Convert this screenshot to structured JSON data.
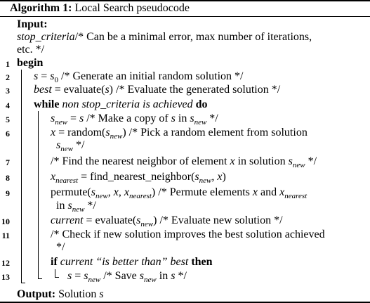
{
  "header": {
    "label": "Algorithm 1:",
    "title": "Local Search pseudocode"
  },
  "input": {
    "label": "Input:",
    "var": "stop_criteria",
    "comment_1": "/* Can be a minimal error, max number of iterations,",
    "comment_2": "etc. */"
  },
  "lines": [
    {
      "num": "1",
      "kw": "begin"
    },
    {
      "num": "2",
      "lhs": "s",
      "eq": " = ",
      "rhs_var": "s",
      "rhs_sub": "0",
      "comment": " /* Generate an initial random solution */"
    },
    {
      "num": "3",
      "lhs": "best",
      "eq": " = evaluate(",
      "arg": "s",
      "close": ")",
      "comment": " /* Evaluate the generated solution */"
    },
    {
      "num": "4",
      "kw": "while",
      "cond": "non stop_criteria is achieved",
      "kw2": "do"
    },
    {
      "num": "5",
      "lhs": "s",
      "lhs_sub": "new",
      "eq": " = ",
      "rhs": "s",
      "comment": " /* Make a copy of ",
      "c_var": "s",
      "c_mid": " in ",
      "c_var2": "s",
      "c_sub2": "new",
      "c_end": " */"
    },
    {
      "num": "6",
      "lhs": "x",
      "eq": " = random(",
      "arg": "s",
      "arg_sub": "new",
      "close": ")",
      "comment": " /* Pick a random element from solution",
      "cont_var": "s",
      "cont_sub": "new",
      "cont_end": " */"
    },
    {
      "num": "7",
      "comment": "/* Find the nearest neighbor of element ",
      "c_var": "x",
      "c_mid": " in solution ",
      "c_var2": "s",
      "c_sub2": "new",
      "c_end": " */"
    },
    {
      "num": "8",
      "lhs": "x",
      "lhs_sub": "nearest",
      "eq": " = find_nearest_neighbor(",
      "arg": "s",
      "arg_sub": "new",
      "sep": ", ",
      "arg2": "x",
      "close": ")"
    },
    {
      "num": "9",
      "fn": "permute(",
      "arg": "s",
      "arg_sub": "new",
      "sep": ", ",
      "arg2": "x",
      "sep2": ", ",
      "arg3": "x",
      "arg3_sub": "nearest",
      "close": ")",
      "comment": " /* Permute elements ",
      "c_var": "x",
      "c_mid": " and ",
      "c_var2": "x",
      "c_sub2": "nearest",
      "cont_pre": "in ",
      "cont_var": "s",
      "cont_sub": "new",
      "cont_end": " */"
    },
    {
      "num": "10",
      "lhs": "current",
      "eq": " = evaluate(",
      "arg": "s",
      "arg_sub": "new",
      "close": ")",
      "comment": " /* Evaluate new solution */"
    },
    {
      "num": "11",
      "comment": "/* Check if new solution improves the best solution achieved",
      "cont_end": "*/"
    },
    {
      "num": "12",
      "kw": "if",
      "cond_var": "current",
      "cond_str": "“is better than”",
      "cond_var2": "best",
      "kw2": "then"
    },
    {
      "num": "13",
      "lhs": "s",
      "eq": " = ",
      "rhs": "s",
      "rhs_sub": "new",
      "comment": " /* Save ",
      "c_var": "s",
      "c_sub": "new",
      "c_mid": " in ",
      "c_var2": "s",
      "c_end": " */"
    }
  ],
  "output": {
    "label": "Output:",
    "text": "Solution ",
    "var": "s"
  }
}
